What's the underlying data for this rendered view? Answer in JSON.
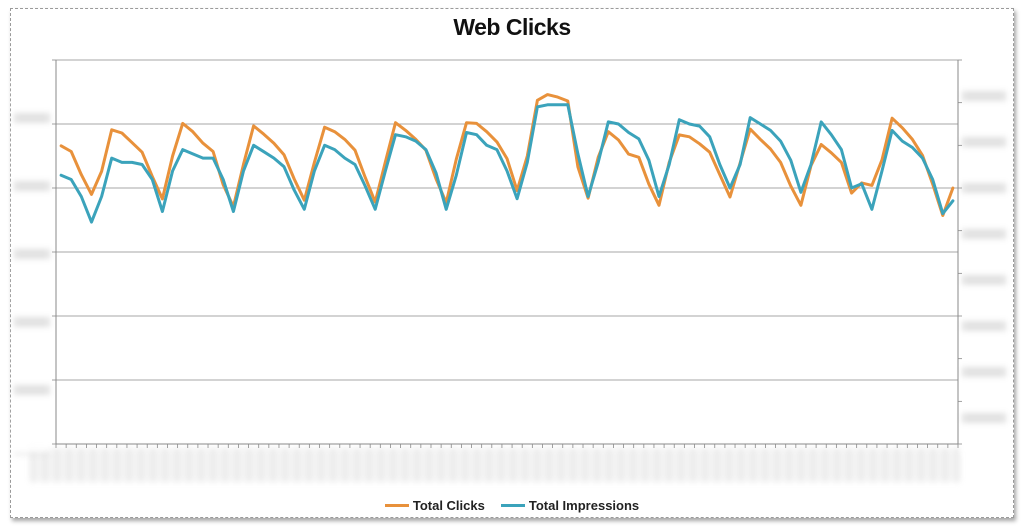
{
  "chart_data": {
    "type": "line",
    "title": "Web Clicks",
    "xlabel": "",
    "ylabel": "",
    "grid": true,
    "legend_position": "bottom",
    "ylim": [
      0,
      600
    ],
    "y2lim": [
      0,
      900
    ],
    "series": [
      {
        "name": "Total Clicks",
        "color": "#E8913B",
        "axis": "left",
        "values": [
          466,
          457,
          421,
          390,
          426,
          491,
          486,
          471,
          456,
          418,
          383,
          450,
          501,
          488,
          470,
          457,
          405,
          371,
          437,
          497,
          484,
          470,
          452,
          414,
          381,
          440,
          495,
          488,
          476,
          459,
          417,
          378,
          441,
          502,
          490,
          476,
          459,
          414,
          377,
          445,
          502,
          501,
          488,
          472,
          446,
          396,
          450,
          537,
          546,
          542,
          536,
          433,
          384,
          448,
          488,
          475,
          453,
          448,
          406,
          373,
          440,
          483,
          480,
          469,
          456,
          421,
          386,
          439,
          492,
          476,
          461,
          440,
          403,
          373,
          435,
          468,
          455,
          440,
          392,
          408,
          404,
          444,
          509,
          494,
          476,
          451,
          406,
          357,
          400
        ]
      },
      {
        "name": "Total Impressions",
        "color": "#3BA3BB",
        "axis": "right",
        "values": [
          630,
          620,
          580,
          520,
          580,
          670,
          660,
          660,
          655,
          620,
          545,
          640,
          690,
          680,
          670,
          670,
          620,
          545,
          640,
          700,
          685,
          670,
          650,
          595,
          550,
          640,
          700,
          690,
          670,
          655,
          605,
          550,
          640,
          725,
          720,
          710,
          690,
          635,
          550,
          630,
          730,
          725,
          700,
          690,
          640,
          575,
          660,
          790,
          795,
          795,
          795,
          680,
          580,
          660,
          755,
          750,
          730,
          715,
          665,
          580,
          655,
          760,
          750,
          745,
          720,
          655,
          600,
          655,
          765,
          750,
          735,
          710,
          665,
          590,
          655,
          755,
          725,
          690,
          600,
          610,
          550,
          640,
          735,
          710,
          695,
          670,
          620,
          540,
          570
        ]
      }
    ]
  }
}
